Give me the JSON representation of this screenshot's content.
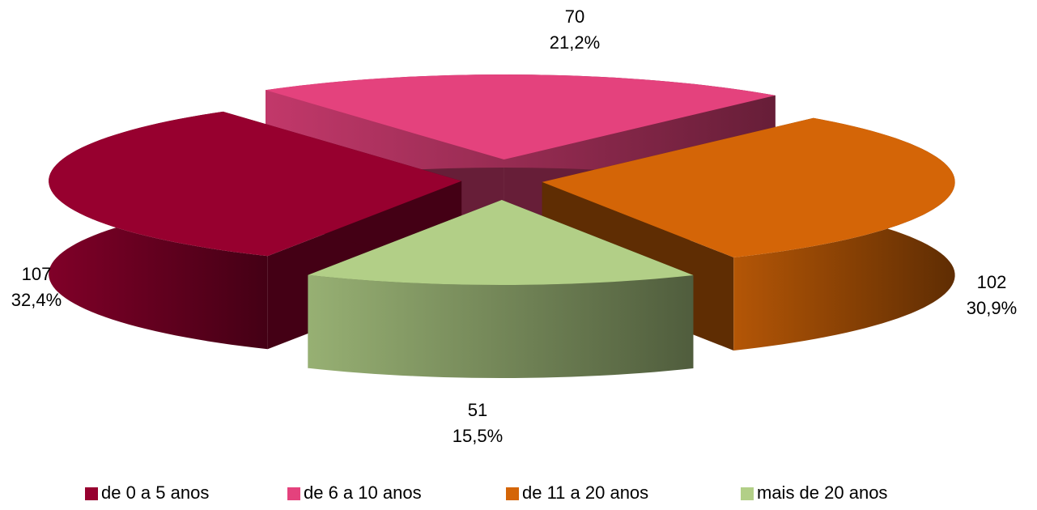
{
  "chart_data": {
    "type": "pie3d",
    "categories": [
      "de 0 a 5 anos",
      "de 6 a 10 anos",
      "de 11 a 20 anos",
      "mais de 20 anos"
    ],
    "values": [
      107,
      70,
      102,
      51
    ],
    "percentages": [
      32.4,
      21.2,
      30.9,
      15.5
    ],
    "percentage_labels": [
      "32,4%",
      "21,2%",
      "30,9%",
      "15,5%"
    ],
    "colors": [
      "#97002f",
      "#e4427d",
      "#d46507",
      "#b2cf87"
    ],
    "legend": "bottom"
  }
}
